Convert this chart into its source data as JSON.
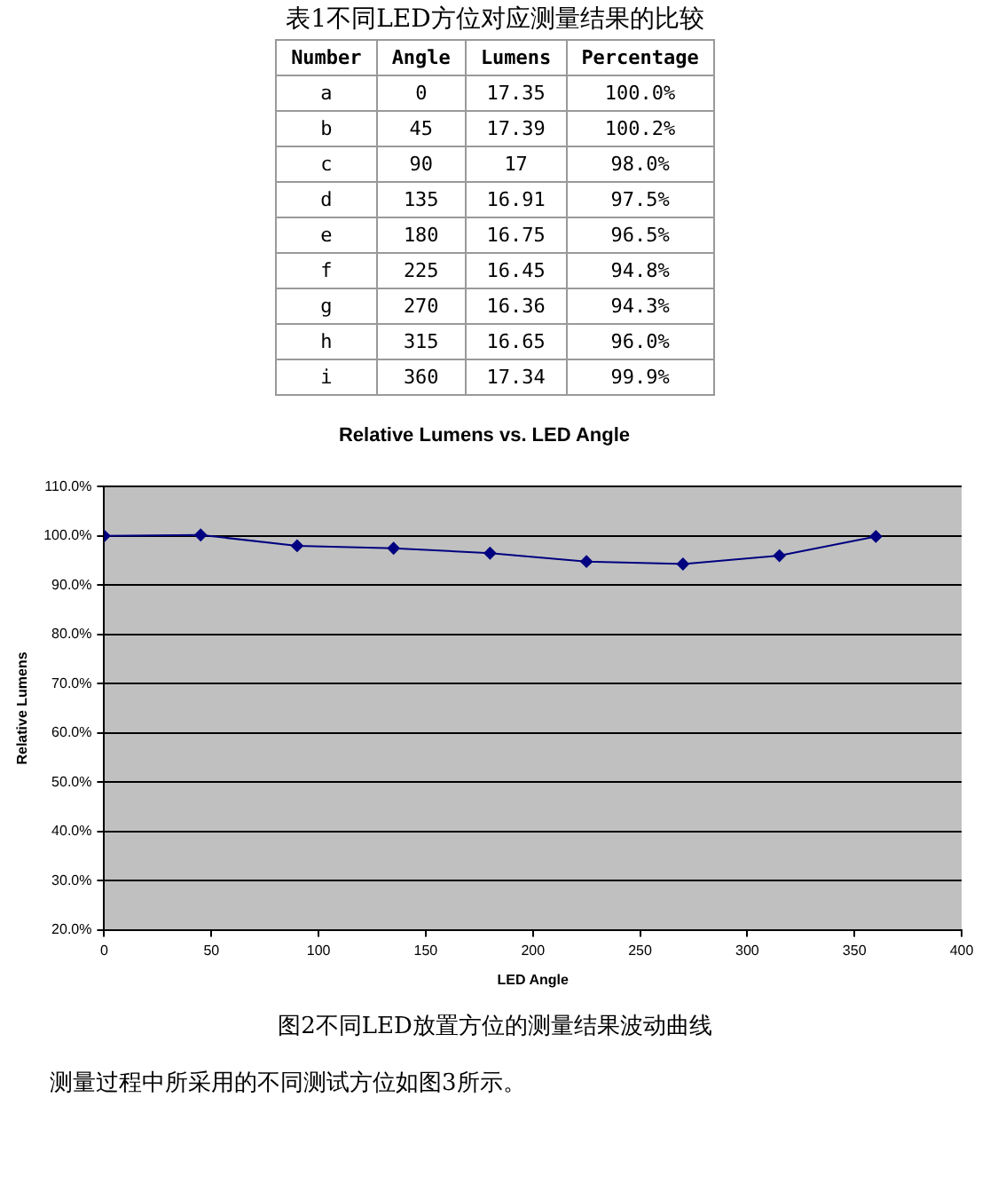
{
  "chart_data": [
    {
      "type": "heatmap",
      "title": "表1不同LED方位对应测量结果的比较",
      "ylabel": "Number",
      "categories": [
        "Angle",
        "Lumens",
        "Percentage"
      ],
      "y_categories": [
        "a",
        "b",
        "c",
        "d",
        "e",
        "f",
        "g",
        "h",
        "i"
      ],
      "cells": [
        [
          0,
          17.35,
          100.0
        ],
        [
          45,
          17.39,
          100.2
        ],
        [
          90,
          17,
          98.0
        ],
        [
          135,
          16.91,
          97.5
        ],
        [
          180,
          16.75,
          96.5
        ],
        [
          225,
          16.45,
          94.8
        ],
        [
          270,
          16.36,
          94.3
        ],
        [
          315,
          16.65,
          96.0
        ],
        [
          360,
          17.34,
          99.9
        ]
      ],
      "cell_labels": [
        [
          "0",
          "17.35",
          "100.0%"
        ],
        [
          "45",
          "17.39",
          "100.2%"
        ],
        [
          "90",
          "17",
          "98.0%"
        ],
        [
          "135",
          "16.91",
          "97.5%"
        ],
        [
          "180",
          "16.75",
          "96.5%"
        ],
        [
          "225",
          "16.45",
          "94.8%"
        ],
        [
          "270",
          "16.36",
          "94.3%"
        ],
        [
          "315",
          "16.65",
          "96.0%"
        ],
        [
          "360",
          "17.34",
          "99.9%"
        ]
      ]
    },
    {
      "type": "line",
      "title": "Relative Lumens vs. LED Angle",
      "xlabel": "LED Angle",
      "ylabel": "Relative Lumens",
      "x": [
        0,
        45,
        90,
        135,
        180,
        225,
        270,
        315,
        360
      ],
      "series": [
        {
          "color": "#000080",
          "values": [
            100.0,
            100.2,
            98.0,
            97.5,
            96.5,
            94.8,
            94.3,
            96.0,
            99.9
          ]
        }
      ],
      "xlim": [
        0,
        400
      ],
      "xticks": [
        0,
        50,
        100,
        150,
        200,
        250,
        300,
        350,
        400
      ],
      "ylim": [
        20,
        110
      ],
      "yticks": [
        {
          "value": 20,
          "label": "20.0%"
        },
        {
          "value": 30,
          "label": "30.0%"
        },
        {
          "value": 40,
          "label": "40.0%"
        },
        {
          "value": 50,
          "label": "50.0%"
        },
        {
          "value": 60,
          "label": "60.0%"
        },
        {
          "value": 70,
          "label": "70.0%"
        },
        {
          "value": 80,
          "label": "80.0%"
        },
        {
          "value": 90,
          "label": "90.0%"
        },
        {
          "value": 100,
          "label": "100.0%"
        },
        {
          "value": 110,
          "label": "110.0%"
        }
      ],
      "grid": "y",
      "legend": false,
      "marker": "diamond",
      "line_style": "solid",
      "annotations": [
        "图2不同LED放置方位的测量结果波动曲线",
        "测量过程中所采用的不同测试方位如图3所示。"
      ]
    }
  ]
}
